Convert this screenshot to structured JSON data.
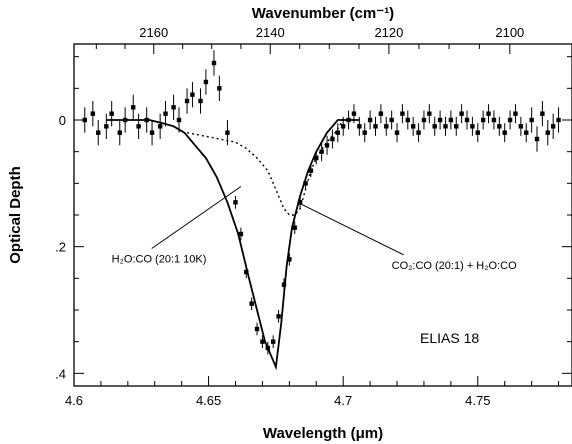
{
  "chart_data": {
    "type": "scatter",
    "xlabel": "Wavelength (μm)",
    "x2label": "Wavenumber (cm⁻¹)",
    "ylabel": "Optical Depth",
    "xlim": [
      4.6,
      4.785
    ],
    "ylim": [
      0.42,
      -0.12
    ],
    "y_inverted": true,
    "x_ticks": [
      {
        "value": 4.6,
        "label": "4.6"
      },
      {
        "value": 4.65,
        "label": "4.65"
      },
      {
        "value": 4.7,
        "label": "4.7"
      },
      {
        "value": 4.75,
        "label": "4.75"
      }
    ],
    "x2_ticks": [
      {
        "value": 2160,
        "label": "2160"
      },
      {
        "value": 2140,
        "label": "2140"
      },
      {
        "value": 2120,
        "label": "2120"
      },
      {
        "value": 2100,
        "label": "2100"
      }
    ],
    "y_ticks": [
      {
        "value": 0,
        "label": "0"
      },
      {
        "value": 0.2,
        "label": ".2"
      },
      {
        "value": 0.4,
        "label": ".4"
      }
    ],
    "series": [
      {
        "style": "points",
        "x": [
          4.604,
          4.607,
          4.609,
          4.612,
          4.614,
          4.617,
          4.619,
          4.622,
          4.624,
          4.627,
          4.629,
          4.632,
          4.634,
          4.637,
          4.639,
          4.642,
          4.644,
          4.647,
          4.649,
          4.652,
          4.654,
          4.657,
          4.66,
          4.662,
          4.664,
          4.666,
          4.668,
          4.67,
          4.672,
          4.674,
          4.676,
          4.678,
          4.68,
          4.682,
          4.684,
          4.686,
          4.688,
          4.69,
          4.692,
          4.694,
          4.696,
          4.698,
          4.7,
          4.702,
          4.704,
          4.706,
          4.708,
          4.71,
          4.712,
          4.714,
          4.716,
          4.718,
          4.72,
          4.722,
          4.724,
          4.726,
          4.728,
          4.73,
          4.732,
          4.734,
          4.736,
          4.738,
          4.74,
          4.742,
          4.744,
          4.746,
          4.748,
          4.75,
          4.752,
          4.754,
          4.756,
          4.758,
          4.76,
          4.762,
          4.764,
          4.766,
          4.768,
          4.77,
          4.772,
          4.774,
          4.776,
          4.778,
          4.78
        ],
        "y": [
          0.0,
          -0.01,
          0.02,
          0.01,
          -0.01,
          0.02,
          0.0,
          -0.02,
          0.01,
          0.0,
          0.02,
          0.01,
          -0.01,
          -0.02,
          0.0,
          -0.03,
          -0.04,
          -0.03,
          -0.06,
          -0.09,
          -0.05,
          0.02,
          0.13,
          0.18,
          0.24,
          0.29,
          0.33,
          0.35,
          0.36,
          0.35,
          0.31,
          0.26,
          0.22,
          0.17,
          0.13,
          0.1,
          0.08,
          0.06,
          0.05,
          0.04,
          0.03,
          0.02,
          0.01,
          0.0,
          -0.01,
          0.01,
          0.02,
          0.0,
          0.01,
          -0.01,
          0.01,
          0.0,
          0.02,
          -0.01,
          0.0,
          0.01,
          0.02,
          0.0,
          -0.01,
          0.01,
          0.0,
          0.01,
          0.0,
          0.01,
          -0.01,
          0.0,
          0.01,
          0.02,
          0.0,
          -0.01,
          0.0,
          0.01,
          0.02,
          0.0,
          -0.01,
          0.01,
          0.02,
          0.0,
          0.03,
          -0.01,
          0.02,
          0.01,
          0.0
        ],
        "err": [
          0.02,
          0.02,
          0.02,
          0.02,
          0.02,
          0.02,
          0.02,
          0.02,
          0.02,
          0.02,
          0.02,
          0.02,
          0.02,
          0.02,
          0.02,
          0.02,
          0.02,
          0.02,
          0.02,
          0.02,
          0.02,
          0.02,
          0.01,
          0.01,
          0.01,
          0.01,
          0.01,
          0.01,
          0.01,
          0.01,
          0.01,
          0.01,
          0.01,
          0.01,
          0.01,
          0.01,
          0.01,
          0.01,
          0.015,
          0.015,
          0.015,
          0.015,
          0.015,
          0.015,
          0.015,
          0.015,
          0.015,
          0.015,
          0.015,
          0.015,
          0.015,
          0.015,
          0.015,
          0.015,
          0.015,
          0.015,
          0.015,
          0.015,
          0.015,
          0.015,
          0.015,
          0.015,
          0.015,
          0.015,
          0.015,
          0.015,
          0.015,
          0.015,
          0.015,
          0.015,
          0.015,
          0.015,
          0.015,
          0.015,
          0.015,
          0.015,
          0.015,
          0.02,
          0.02,
          0.02,
          0.02,
          0.02,
          0.02
        ]
      },
      {
        "name": "H₂O:CO (20:1 10K)",
        "style": "solid",
        "x": [
          4.612,
          4.62,
          4.628,
          4.633,
          4.637,
          4.641,
          4.645,
          4.649,
          4.653,
          4.657,
          4.661,
          4.665,
          4.668,
          4.671,
          4.673,
          4.675,
          4.677,
          4.679,
          4.681,
          4.684,
          4.687,
          4.69,
          4.694,
          4.698,
          4.702,
          4.706
        ],
        "y": [
          0.0,
          0.0,
          0.0,
          0.005,
          0.01,
          0.02,
          0.04,
          0.06,
          0.09,
          0.13,
          0.18,
          0.25,
          0.3,
          0.35,
          0.37,
          0.39,
          0.32,
          0.23,
          0.17,
          0.12,
          0.08,
          0.05,
          0.02,
          0.0,
          0.0,
          0.0
        ]
      },
      {
        "name": "CO₂:CO (20:1) + H₂O:CO",
        "style": "dotted",
        "x": [
          4.642,
          4.648,
          4.654,
          4.66,
          4.664,
          4.668,
          4.672,
          4.675,
          4.678,
          4.68,
          4.682,
          4.684,
          4.686,
          4.688,
          4.69,
          4.693,
          4.697,
          4.7,
          4.704
        ],
        "y": [
          0.02,
          0.025,
          0.03,
          0.035,
          0.045,
          0.06,
          0.08,
          0.11,
          0.14,
          0.15,
          0.15,
          0.14,
          0.11,
          0.08,
          0.06,
          0.04,
          0.02,
          0.0,
          0.0
        ]
      }
    ],
    "annotations": [
      {
        "text": "H₂O:CO (20:1  10K)",
        "x": 4.614,
        "y": 0.225,
        "arrow_to": [
          4.662,
          0.105
        ]
      },
      {
        "text": "CO₂:CO (20:1)  +  H₂O:CO",
        "x": 4.718,
        "y": 0.235,
        "arrow_to": [
          4.683,
          0.13
        ]
      }
    ],
    "object_label": "ELIAS 18"
  }
}
